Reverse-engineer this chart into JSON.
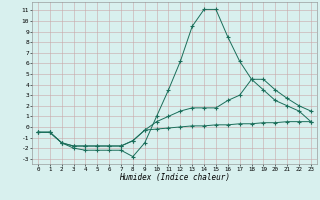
{
  "xlabel": "Humidex (Indice chaleur)",
  "xlim": [
    -0.5,
    23.5
  ],
  "ylim": [
    -3.5,
    11.8
  ],
  "xticks": [
    0,
    1,
    2,
    3,
    4,
    5,
    6,
    7,
    8,
    9,
    10,
    11,
    12,
    13,
    14,
    15,
    16,
    17,
    18,
    19,
    20,
    21,
    22,
    23
  ],
  "yticks": [
    -3,
    -2,
    -1,
    0,
    1,
    2,
    3,
    4,
    5,
    6,
    7,
    8,
    9,
    10,
    11
  ],
  "background_color": "#d8f0ee",
  "grid_color": "#c8a8a8",
  "line_color": "#1a6e5a",
  "line1_x": [
    0,
    1,
    2,
    3,
    4,
    5,
    6,
    7,
    8,
    9,
    10,
    11,
    12,
    13,
    14,
    15,
    16,
    17,
    18,
    19,
    20,
    21,
    22,
    23
  ],
  "line1_y": [
    -0.5,
    -0.5,
    -1.5,
    -2.0,
    -2.2,
    -2.2,
    -2.2,
    -2.2,
    -2.8,
    -1.5,
    1.0,
    3.5,
    6.2,
    9.5,
    11.1,
    11.1,
    8.5,
    6.2,
    4.5,
    3.5,
    2.5,
    2.0,
    1.5,
    0.5
  ],
  "line2_x": [
    0,
    1,
    2,
    3,
    4,
    5,
    6,
    7,
    8,
    9,
    10,
    11,
    12,
    13,
    14,
    15,
    16,
    17,
    18,
    19,
    20,
    21,
    22,
    23
  ],
  "line2_y": [
    -0.5,
    -0.5,
    -1.5,
    -1.8,
    -1.8,
    -1.8,
    -1.8,
    -1.8,
    -1.3,
    -0.3,
    0.5,
    1.0,
    1.5,
    1.8,
    1.8,
    1.8,
    2.5,
    3.0,
    4.5,
    4.5,
    3.5,
    2.7,
    2.0,
    1.5
  ],
  "line3_x": [
    0,
    1,
    2,
    3,
    4,
    5,
    6,
    7,
    8,
    9,
    10,
    11,
    12,
    13,
    14,
    15,
    16,
    17,
    18,
    19,
    20,
    21,
    22,
    23
  ],
  "line3_y": [
    -0.5,
    -0.5,
    -1.5,
    -1.8,
    -1.8,
    -1.8,
    -1.8,
    -1.8,
    -1.3,
    -0.3,
    -0.2,
    -0.1,
    0.0,
    0.1,
    0.1,
    0.2,
    0.2,
    0.3,
    0.3,
    0.4,
    0.4,
    0.5,
    0.5,
    0.5
  ]
}
